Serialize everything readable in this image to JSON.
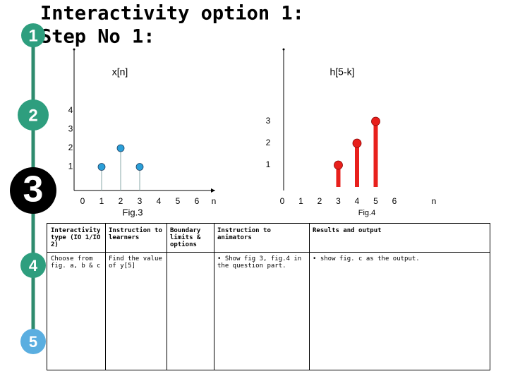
{
  "title_lines": [
    "Interactivity option 1:",
    "Step No 1:"
  ],
  "steps": [
    "1",
    "2",
    "3",
    "4",
    "5"
  ],
  "figures": [
    {
      "label": "x[n]",
      "caption": "Fig.3",
      "x_ticks": [
        0,
        1,
        2,
        3,
        4,
        5,
        6
      ],
      "x_axis_label": "n",
      "y_ticks": [
        1,
        2,
        3,
        4
      ],
      "color": "#2a9fd8",
      "stems": [
        {
          "n": 1,
          "value": 1
        },
        {
          "n": 2,
          "value": 2
        },
        {
          "n": 3,
          "value": 1
        }
      ]
    },
    {
      "label": "h[5-k]",
      "caption": "Fig.4",
      "x_ticks": [
        0,
        1,
        2,
        3,
        4,
        5,
        6
      ],
      "x_axis_label": "n",
      "y_ticks": [
        1,
        2,
        3
      ],
      "color": "#e8201c",
      "stems": [
        {
          "n": 3,
          "value": 1
        },
        {
          "n": 4,
          "value": 2
        },
        {
          "n": 5,
          "value": 3
        }
      ]
    }
  ],
  "table": {
    "header": [
      "Interactivity type (IO 1/IO 2)",
      "Instruction to learners",
      "Boundary limits & options",
      "Instruction to animators",
      "Results and output"
    ],
    "rows": [
      [
        "Choose from fig. a, b & c",
        "Find the value of y[5]",
        "",
        "• Show fig 3, fig.4 in the question part.",
        "• show fig. c as the output."
      ]
    ]
  }
}
